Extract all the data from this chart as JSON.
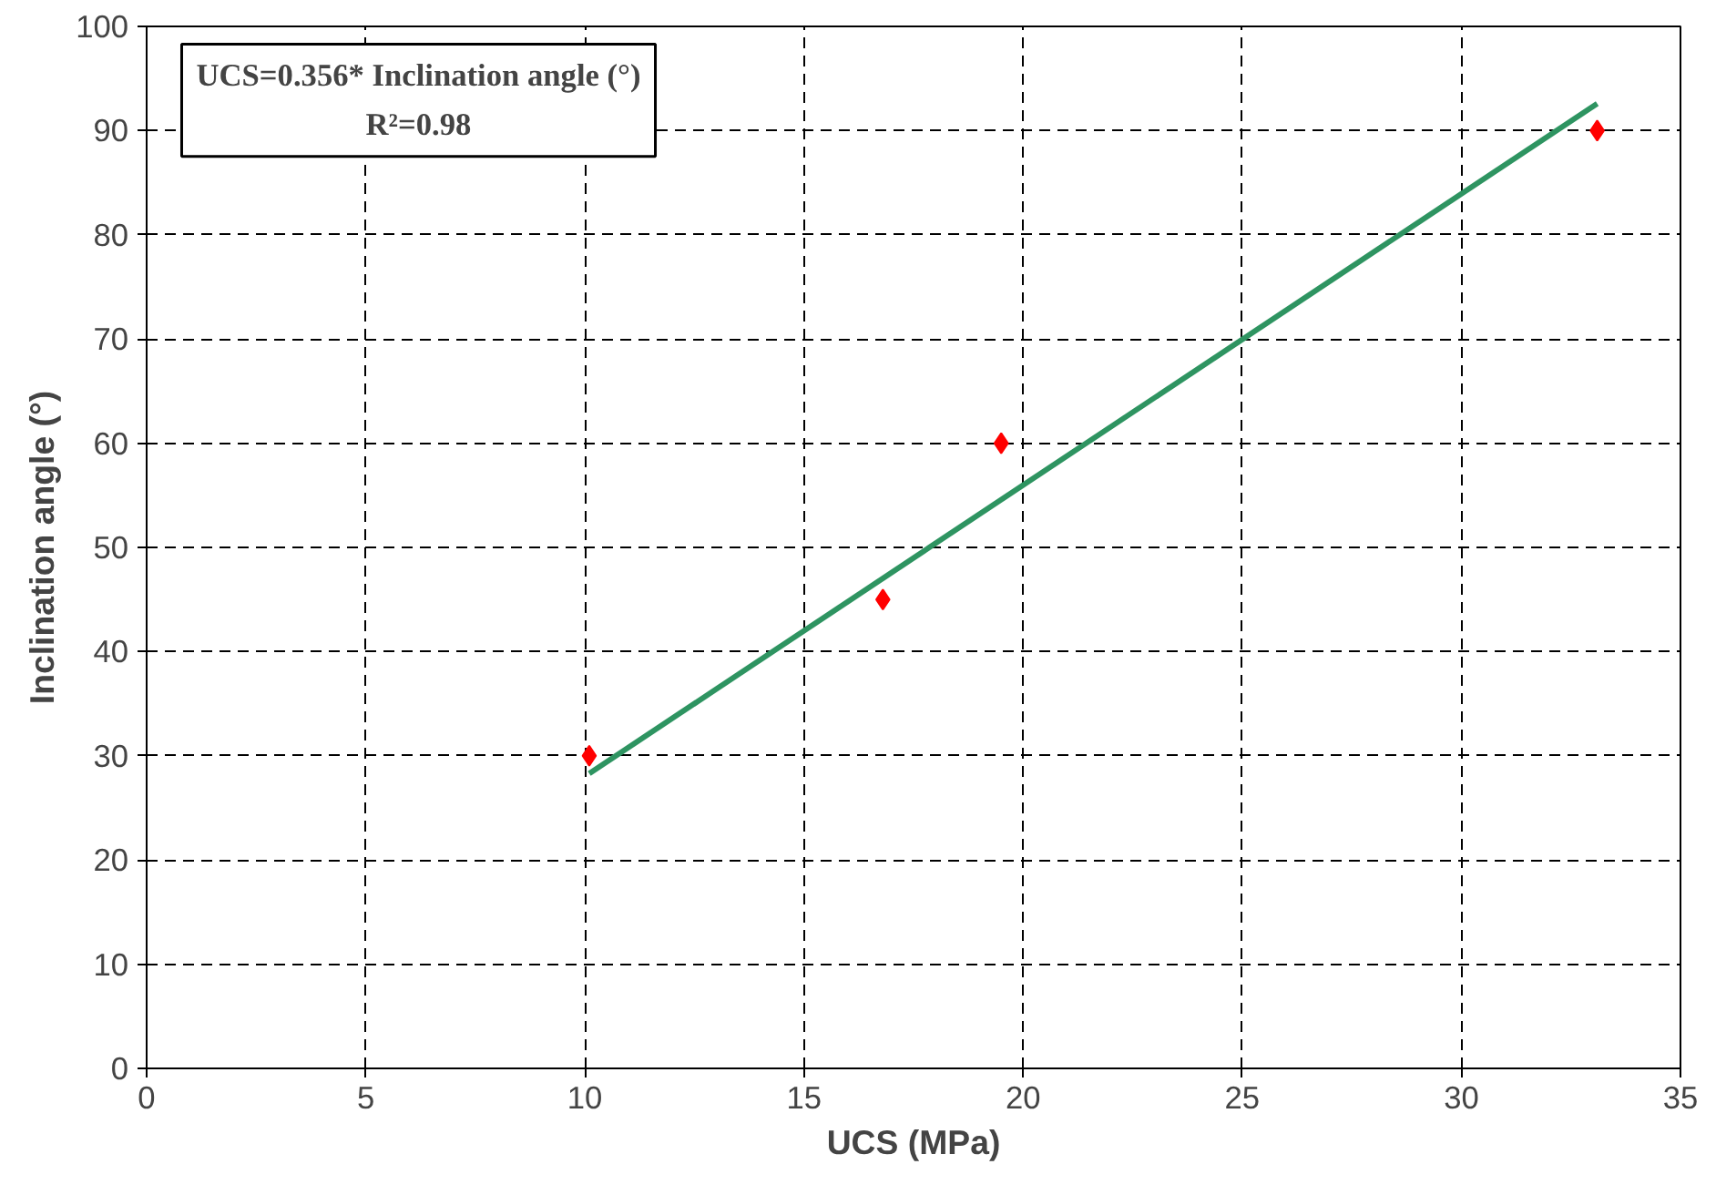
{
  "chart_data": {
    "type": "scatter",
    "xlabel": "UCS (MPa)",
    "ylabel": "Inclination angle (°)",
    "annotations": [
      "UCS=0.356* Inclination angle (°)",
      "R²=0.98"
    ],
    "xlim": [
      0,
      35
    ],
    "xticks": [
      0,
      5,
      10,
      15,
      20,
      25,
      30,
      35
    ],
    "ylim": [
      0,
      100
    ],
    "yticks": [
      0,
      10,
      20,
      30,
      40,
      50,
      60,
      70,
      80,
      90,
      100
    ],
    "grid": true,
    "series": [
      {
        "marker": "diamond",
        "color": "#ff0000",
        "x": [
          10.1,
          16.8,
          19.5,
          33.1
        ],
        "values": [
          30,
          45,
          60,
          90
        ]
      },
      {
        "type": "line",
        "marker": "none",
        "line_style": "solid",
        "color": "#2e9461",
        "x": [
          10.1,
          33.1
        ],
        "values": [
          28.3,
          92.6
        ]
      }
    ]
  }
}
